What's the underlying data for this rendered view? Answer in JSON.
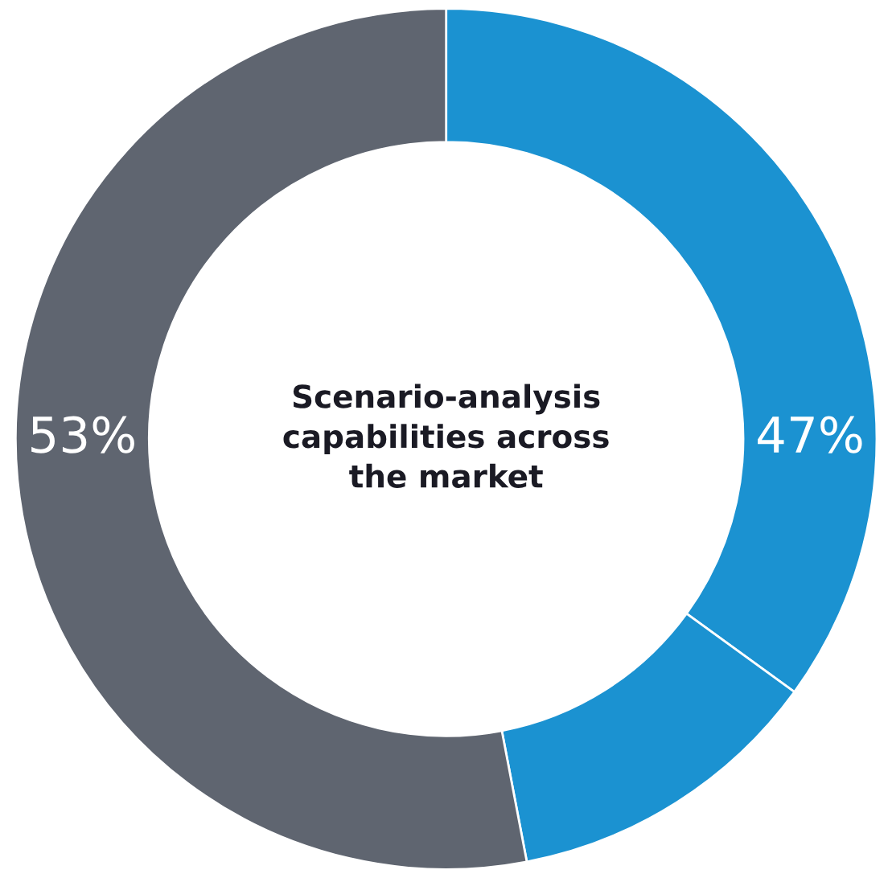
{
  "chart_data": {
    "type": "donut",
    "title": "Scenario-analysis\ncapabilities across\nthe market",
    "categories": [
      null,
      null,
      null
    ],
    "values": [
      35,
      12,
      53
    ],
    "colors": [
      "#1b92d1",
      "#1b92d1",
      "#5f6570"
    ],
    "annotations": [
      "47%",
      "53%"
    ]
  }
}
